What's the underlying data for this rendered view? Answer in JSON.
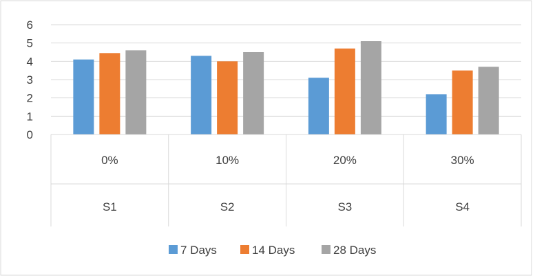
{
  "chart_data": {
    "type": "bar",
    "categories": [
      "S1",
      "S2",
      "S3",
      "S4"
    ],
    "category_groups": [
      "0%",
      "10%",
      "20%",
      "30%"
    ],
    "series": [
      {
        "name": "7 Days",
        "color": "#5B9BD5",
        "values": [
          4.1,
          4.3,
          3.1,
          2.2
        ]
      },
      {
        "name": "14 Days",
        "color": "#ED7D31",
        "values": [
          4.45,
          4.0,
          4.7,
          3.5
        ]
      },
      {
        "name": "28 Days",
        "color": "#A5A5A5",
        "values": [
          4.6,
          4.5,
          5.1,
          3.7
        ]
      }
    ],
    "y_ticks": [
      "0",
      "1",
      "2",
      "3",
      "4",
      "5",
      "6"
    ],
    "ylim": [
      0,
      6
    ],
    "grid": true,
    "legend_position": "bottom"
  }
}
